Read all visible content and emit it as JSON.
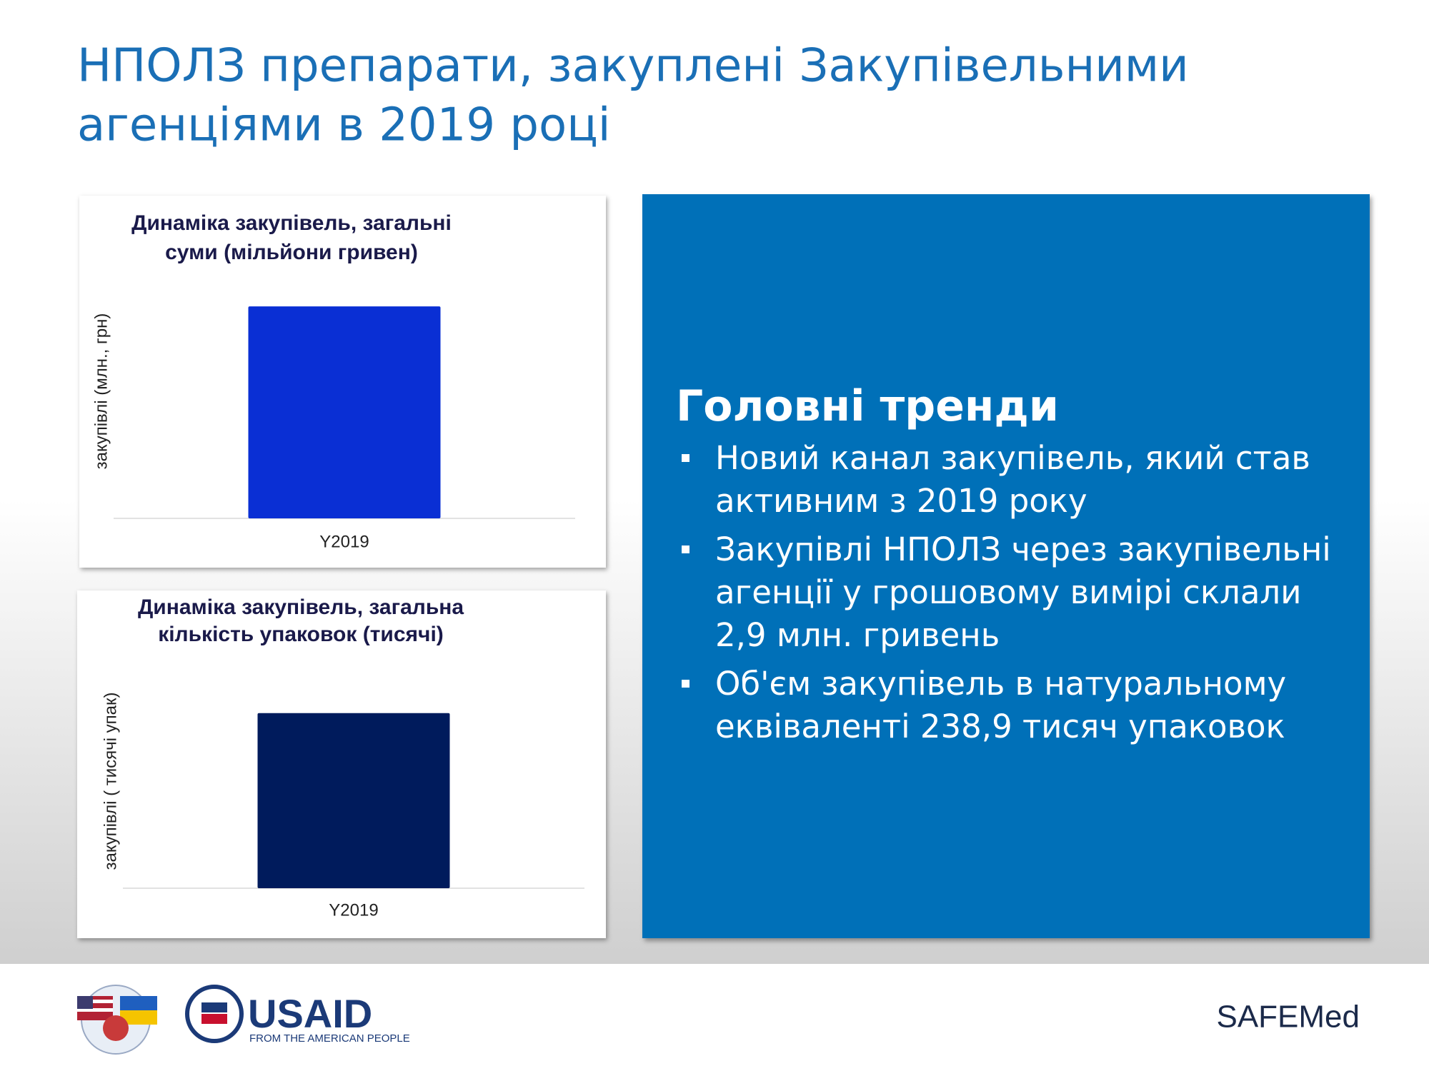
{
  "title": [
    "НПОЛЗ препарати, закуплені Закупівельними",
    "агенціями в 2019 році"
  ],
  "chart_data": [
    {
      "type": "bar",
      "title": [
        "Динаміка закупівель, загальні",
        "суми (мільйони гривен)"
      ],
      "y_label": "закупівлі (млн., грн)",
      "categories": [
        "Y2019"
      ],
      "values": [
        2.9
      ],
      "color": "#0a2fd4",
      "ylim": [
        0,
        3.4
      ]
    },
    {
      "type": "bar",
      "title": [
        "Динаміка закупівель, загальна",
        "кількість упаковок (тисячі)"
      ],
      "y_label": "закупівлі ( тисячі упак)",
      "categories": [
        "Y2019"
      ],
      "values": [
        238.9
      ],
      "color": "#001b5c",
      "ylim": [
        0,
        300
      ]
    }
  ],
  "trends": {
    "heading": "Головні тренди",
    "bullets": [
      "Новий канал закупівель, який став активним з 2019 року",
      "Закупівлі НПОЛЗ через закупівельні агенції у грошовому вимірі склали 2,9 млн. гривень",
      "Об'єм  закупівель в натуральному еквіваленті 238,9 тисяч упаковок"
    ]
  },
  "footer": {
    "usaid": "USAID",
    "usaid_tagline": "FROM THE AMERICAN PEOPLE",
    "safemed": "SAFEMed"
  }
}
